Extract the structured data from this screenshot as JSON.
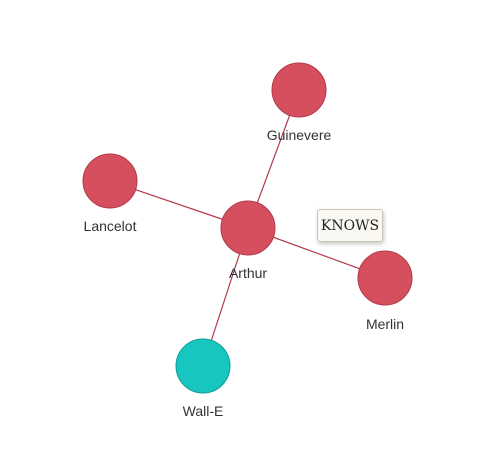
{
  "graph": {
    "colors": {
      "person": "#d64f5e",
      "person_stroke": "#b23a49",
      "robot": "#17c6bf",
      "robot_stroke": "#0e9f99",
      "edge": "#b23a49",
      "label": "#333333"
    },
    "nodes": [
      {
        "id": "arthur",
        "label": "Arthur",
        "kind": "person"
      },
      {
        "id": "guinevere",
        "label": "Guinevere",
        "kind": "person"
      },
      {
        "id": "lancelot",
        "label": "Lancelot",
        "kind": "person"
      },
      {
        "id": "merlin",
        "label": "Merlin",
        "kind": "person"
      },
      {
        "id": "walle",
        "label": "Wall-E",
        "kind": "robot"
      }
    ],
    "edges": [
      {
        "source": "arthur",
        "target": "guinevere"
      },
      {
        "source": "arthur",
        "target": "lancelot"
      },
      {
        "source": "arthur",
        "target": "merlin"
      },
      {
        "source": "arthur",
        "target": "walle"
      }
    ],
    "tooltip": {
      "text": "KNOWS",
      "edge": "arthur-merlin"
    }
  }
}
